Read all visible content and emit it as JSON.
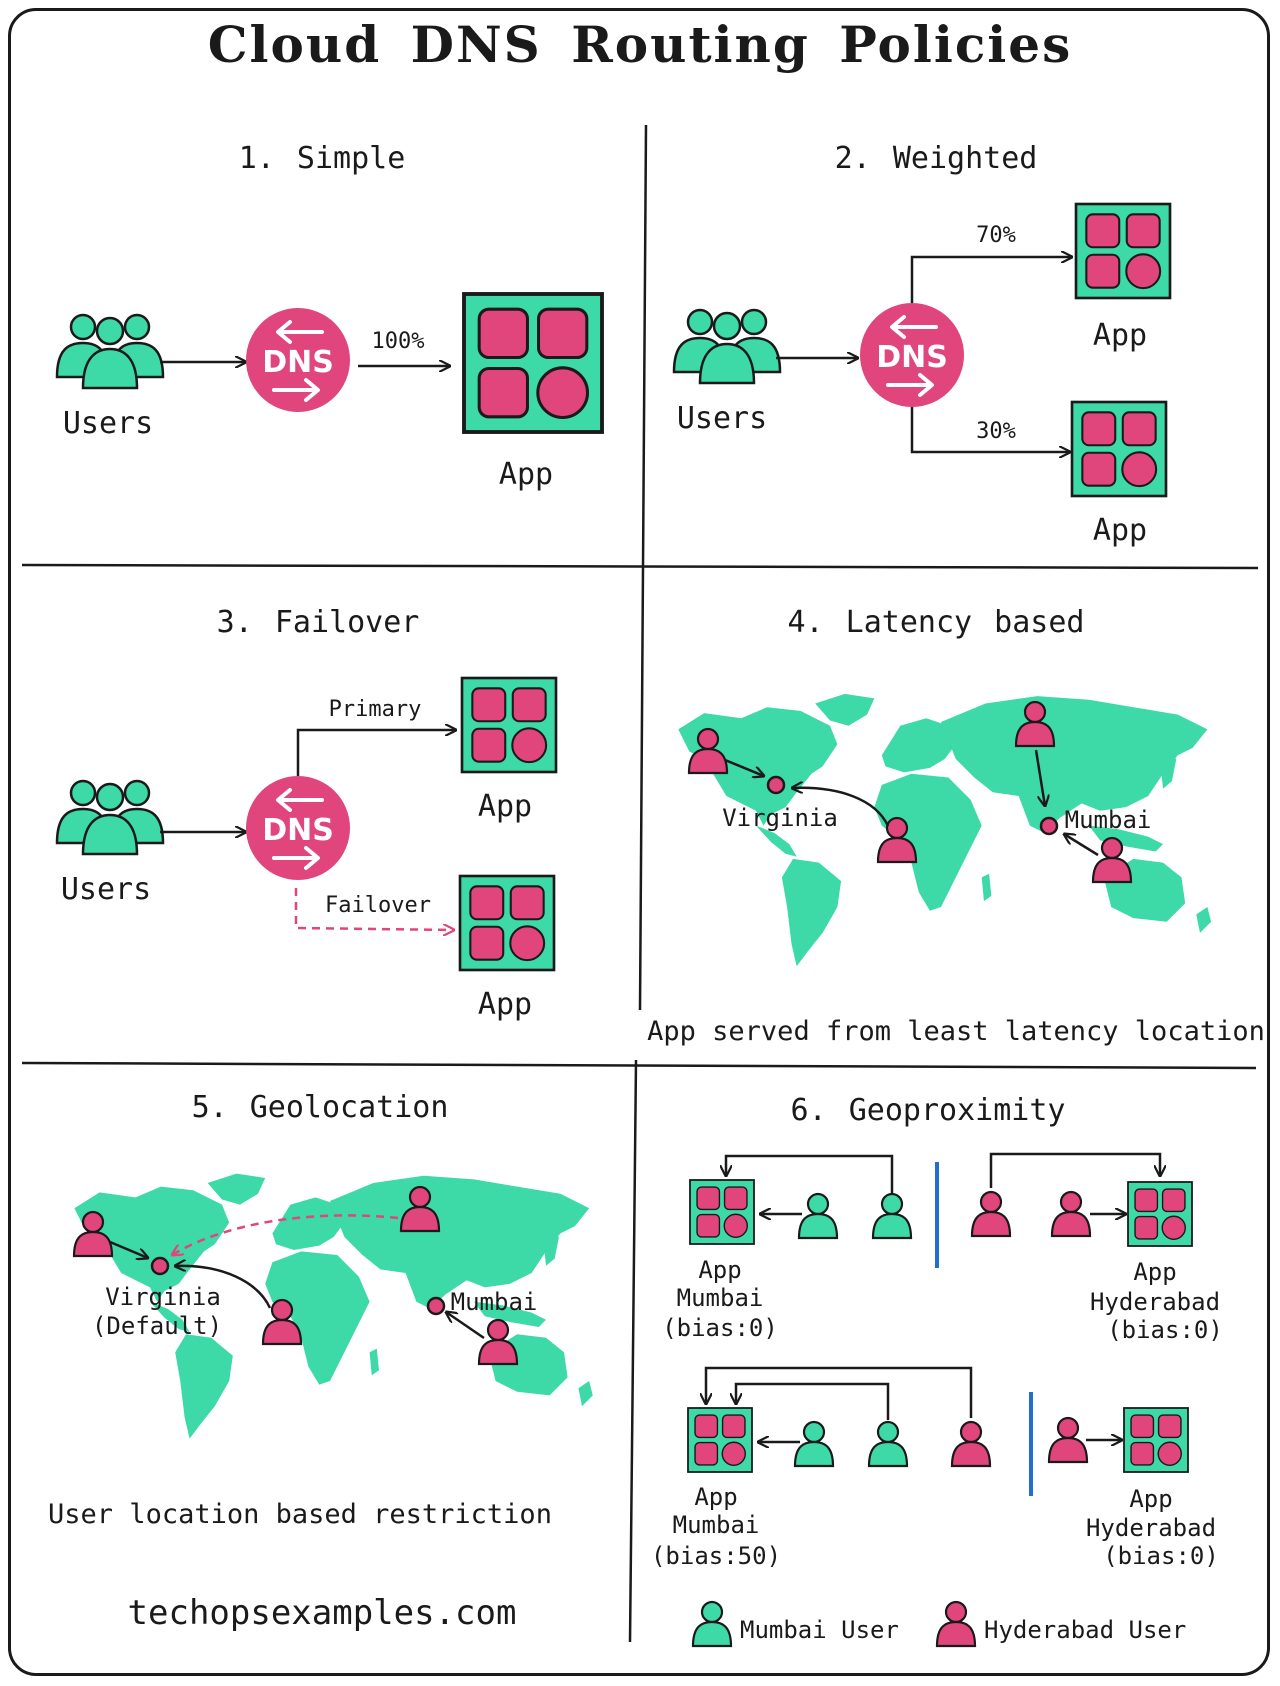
{
  "title": "Cloud DNS Routing Policies",
  "colors": {
    "green": "#3dd9a6",
    "pink": "#e0457b",
    "ink": "#1a1a1a",
    "blue": "#1e6fd0"
  },
  "icons": {
    "dns": "dns-icon",
    "users": "users-group-icon",
    "app": "app-grid-icon",
    "user": "user-icon",
    "location": "location-dot-icon"
  },
  "dns_label": "DNS",
  "sections": {
    "simple": {
      "title": "1. Simple",
      "users": "Users",
      "app": "App",
      "weight": "100%"
    },
    "weighted": {
      "title": "2. Weighted",
      "users": "Users",
      "app_top": "App",
      "app_bottom": "App",
      "weight_top": "70%",
      "weight_bottom": "30%"
    },
    "failover": {
      "title": "3. Failover",
      "users": "Users",
      "app_top": "App",
      "app_bottom": "App",
      "primary": "Primary",
      "failover": "Failover"
    },
    "latency": {
      "title": "4. Latency based",
      "loc1": "Virginia",
      "loc2": "Mumbai",
      "caption": "App served from least latency location"
    },
    "geolocation": {
      "title": "5. Geolocation",
      "loc1_line1": "Virginia",
      "loc1_line2": "(Default)",
      "loc2": "Mumbai",
      "caption": "User location based restriction"
    },
    "geoproximity": {
      "title": "6. Geoproximity",
      "top_left": {
        "line1": "App",
        "line2": "Mumbai",
        "line3": "(bias:0)"
      },
      "top_right": {
        "line1": "App",
        "line2": "Hyderabad",
        "line3": "(bias:0)"
      },
      "bottom_left": {
        "line1": "App",
        "line2": "Mumbai",
        "line3": "(bias:50)"
      },
      "bottom_right": {
        "line1": "App",
        "line2": "Hyderabad",
        "line3": "(bias:0)"
      },
      "legend_mumbai": "Mumbai User",
      "legend_hyderabad": "Hyderabad User"
    }
  },
  "footer": "techopsexamples.com"
}
